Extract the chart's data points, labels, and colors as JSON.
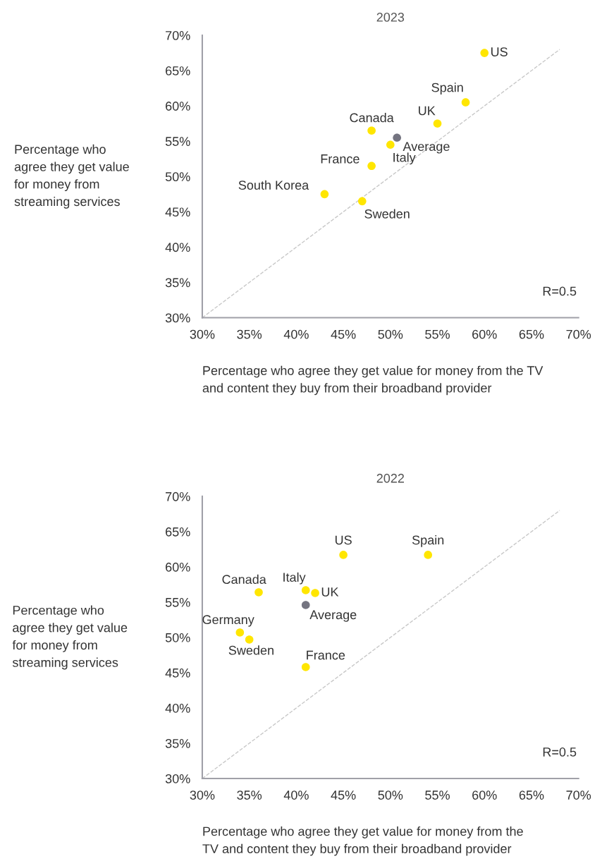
{
  "chart_data": [
    {
      "type": "scatter",
      "title": "2023",
      "ylabel": "Percentage who\nagree they get value\nfor money from\nstreaming services",
      "xlabel": "Percentage who agree they get value for money from the TV\nand content they buy from their broadband provider",
      "xlim": [
        30,
        70
      ],
      "ylim": [
        30,
        70
      ],
      "xticks": [
        {
          "value": 30,
          "label": "30%"
        },
        {
          "value": 35,
          "label": "35%"
        },
        {
          "value": 40,
          "label": "40%"
        },
        {
          "value": 45,
          "label": "45%"
        },
        {
          "value": 50,
          "label": "50%"
        },
        {
          "value": 55,
          "label": "55%"
        },
        {
          "value": 60,
          "label": "60%"
        },
        {
          "value": 65,
          "label": "65%"
        },
        {
          "value": 70,
          "label": "70%"
        }
      ],
      "yticks": [
        {
          "value": 30,
          "label": "30%"
        },
        {
          "value": 35,
          "label": "35%"
        },
        {
          "value": 40,
          "label": "40%"
        },
        {
          "value": 45,
          "label": "45%"
        },
        {
          "value": 50,
          "label": "50%"
        },
        {
          "value": 55,
          "label": "55%"
        },
        {
          "value": 60,
          "label": "60%"
        },
        {
          "value": 65,
          "label": "65%"
        },
        {
          "value": 70,
          "label": "70%"
        }
      ],
      "grid": false,
      "legend": false,
      "marker": "circle",
      "series": [
        {
          "type": "line",
          "color": "#c8c8c8",
          "line_style": "dashed",
          "marker": "none",
          "x": [
            30,
            68
          ],
          "values": [
            30,
            68
          ]
        },
        {
          "name": "US",
          "color": "#ffe600",
          "x": [
            60
          ],
          "values": [
            67.5
          ]
        },
        {
          "name": "Spain",
          "color": "#ffe600",
          "x": [
            58
          ],
          "values": [
            60.5
          ]
        },
        {
          "name": "UK",
          "color": "#ffe600",
          "x": [
            55
          ],
          "values": [
            57.5
          ]
        },
        {
          "name": "Canada",
          "color": "#ffe600",
          "x": [
            48
          ],
          "values": [
            56.5
          ]
        },
        {
          "name": "Average",
          "color": "#747480",
          "x": [
            50.7
          ],
          "values": [
            55.5
          ]
        },
        {
          "name": "Italy",
          "color": "#ffe600",
          "x": [
            50
          ],
          "values": [
            54.5
          ]
        },
        {
          "name": "France",
          "color": "#ffe600",
          "x": [
            48
          ],
          "values": [
            51.5
          ]
        },
        {
          "name": "South Korea",
          "color": "#ffe600",
          "x": [
            43
          ],
          "values": [
            47.5
          ]
        },
        {
          "name": "Sweden",
          "color": "#ffe600",
          "x": [
            47
          ],
          "values": [
            46.5
          ]
        }
      ],
      "annotations": [
        "R=0.5"
      ]
    },
    {
      "type": "scatter",
      "title": "2022",
      "ylabel": "Percentage who\nagree they get value\nfor money from\nstreaming services",
      "xlabel": "Percentage who agree they get value for money from the\nTV and content they buy from their broadband provider",
      "xlim": [
        30,
        70
      ],
      "ylim": [
        30,
        70
      ],
      "xticks": [
        {
          "value": 30,
          "label": "30%"
        },
        {
          "value": 35,
          "label": "35%"
        },
        {
          "value": 40,
          "label": "40%"
        },
        {
          "value": 45,
          "label": "45%"
        },
        {
          "value": 50,
          "label": "50%"
        },
        {
          "value": 55,
          "label": "55%"
        },
        {
          "value": 60,
          "label": "60%"
        },
        {
          "value": 65,
          "label": "65%"
        },
        {
          "value": 70,
          "label": "70%"
        }
      ],
      "yticks": [
        {
          "value": 30,
          "label": "30%"
        },
        {
          "value": 35,
          "label": "35%"
        },
        {
          "value": 40,
          "label": "40%"
        },
        {
          "value": 45,
          "label": "45%"
        },
        {
          "value": 50,
          "label": "50%"
        },
        {
          "value": 55,
          "label": "55%"
        },
        {
          "value": 60,
          "label": "60%"
        },
        {
          "value": 65,
          "label": "65%"
        },
        {
          "value": 70,
          "label": "70%"
        }
      ],
      "grid": false,
      "legend": false,
      "marker": "circle",
      "series": [
        {
          "type": "line",
          "color": "#c8c8c8",
          "line_style": "dashed",
          "marker": "none",
          "x": [
            30,
            68
          ],
          "values": [
            30,
            68
          ]
        },
        {
          "name": "US",
          "color": "#ffe600",
          "x": [
            45
          ],
          "values": [
            61.7
          ]
        },
        {
          "name": "Spain",
          "color": "#ffe600",
          "x": [
            54
          ],
          "values": [
            61.7
          ]
        },
        {
          "name": "Canada",
          "color": "#ffe600",
          "x": [
            36
          ],
          "values": [
            56.4
          ]
        },
        {
          "name": "Italy",
          "color": "#ffe600",
          "x": [
            41
          ],
          "values": [
            56.7
          ]
        },
        {
          "name": "UK",
          "color": "#ffe600",
          "x": [
            42
          ],
          "values": [
            56.3
          ]
        },
        {
          "name": "Average",
          "color": "#747480",
          "x": [
            41
          ],
          "values": [
            54.6
          ]
        },
        {
          "name": "Germany",
          "color": "#ffe600",
          "x": [
            34
          ],
          "values": [
            50.7
          ]
        },
        {
          "name": "Sweden",
          "color": "#ffe600",
          "x": [
            35
          ],
          "values": [
            49.7
          ]
        },
        {
          "name": "France",
          "color": "#ffe600",
          "x": [
            41
          ],
          "values": [
            45.8
          ]
        }
      ],
      "annotations": [
        "R=0.5"
      ]
    }
  ]
}
